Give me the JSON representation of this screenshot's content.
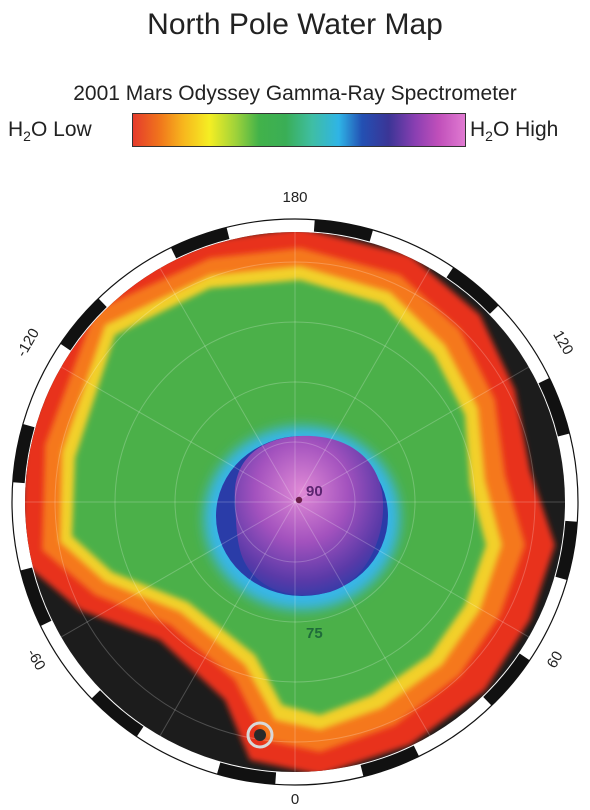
{
  "header": {
    "title": "North Pole Water Map",
    "subtitle": "2001 Mars Odyssey Gamma-Ray Spectrometer"
  },
  "scale": {
    "low_prefix": "H",
    "low_sub": "2",
    "low_suffix": "O Low",
    "high_prefix": "H",
    "high_sub": "2",
    "high_suffix": "O High",
    "colors": [
      "#e53b2c",
      "#f0751c",
      "#f7b51d",
      "#f5ee23",
      "#9ed23a",
      "#42b24a",
      "#3aae56",
      "#3fbea4",
      "#2fb4e6",
      "#2350b3",
      "#3b3596",
      "#8a3fb2",
      "#c04fba",
      "#e07ad1"
    ]
  },
  "map": {
    "labels": {
      "lon_top": "180",
      "lon_bottom": "0",
      "lon_upper_left": "-120",
      "lon_upper_right": "120",
      "lon_lower_left": "-60",
      "lon_lower_right": "60",
      "lat_center": "90",
      "lat_ring": "75"
    },
    "colors": {
      "background_terrain": "#1c1c1c",
      "dry_red": "#e8321f",
      "orange": "#f5781e",
      "yellow": "#f2d02a",
      "green": "#4cb04a",
      "cyan": "#39b6e8",
      "blue": "#2a3ca8",
      "purple": "#7a3fb0",
      "magenta": "#d175c8"
    }
  }
}
